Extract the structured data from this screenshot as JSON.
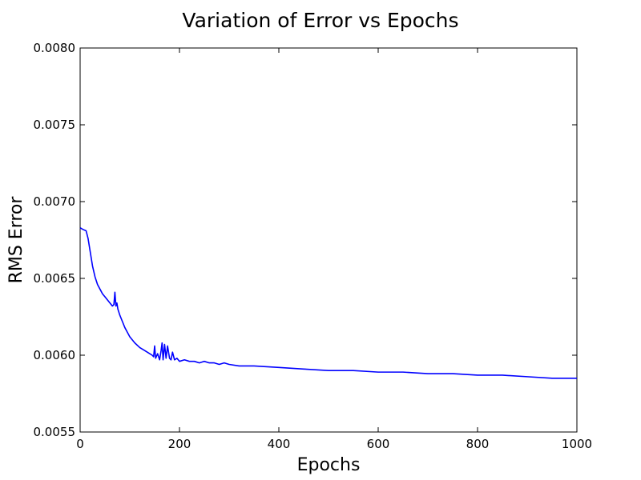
{
  "chart_data": {
    "type": "line",
    "title": "Variation of Error vs Epochs",
    "xlabel": "Epochs",
    "ylabel": "RMS Error",
    "xlim": [
      0,
      1000
    ],
    "ylim": [
      0.0055,
      0.008
    ],
    "x_ticks": [
      "0",
      "200",
      "400",
      "600",
      "800",
      "1000"
    ],
    "y_ticks": [
      "0.0055",
      "0.0060",
      "0.0065",
      "0.0070",
      "0.0075",
      "0.0080"
    ],
    "grid": false,
    "legend": "none",
    "series": [
      {
        "color": "#0000ff",
        "x": [
          0,
          5,
          12,
          16,
          20,
          25,
          30,
          35,
          40,
          45,
          50,
          55,
          60,
          65,
          68,
          70,
          72,
          74,
          76,
          80,
          85,
          90,
          95,
          100,
          110,
          120,
          130,
          140,
          145,
          148,
          150,
          152,
          156,
          160,
          163,
          165,
          167,
          170,
          173,
          176,
          180,
          183,
          186,
          190,
          195,
          200,
          210,
          220,
          230,
          240,
          250,
          260,
          270,
          280,
          290,
          300,
          320,
          350,
          400,
          450,
          500,
          550,
          600,
          650,
          700,
          750,
          800,
          850,
          900,
          950,
          1000
        ],
        "y": [
          0.00683,
          0.00682,
          0.00681,
          0.00676,
          0.00668,
          0.00658,
          0.00651,
          0.00646,
          0.00643,
          0.0064,
          0.00638,
          0.00636,
          0.00634,
          0.00632,
          0.00633,
          0.00641,
          0.00632,
          0.00634,
          0.0063,
          0.00626,
          0.00622,
          0.00618,
          0.00615,
          0.00612,
          0.00608,
          0.00605,
          0.00603,
          0.00601,
          0.006,
          0.00599,
          0.00606,
          0.00598,
          0.00601,
          0.00597,
          0.00603,
          0.00608,
          0.00597,
          0.00607,
          0.00598,
          0.00606,
          0.00598,
          0.00597,
          0.00602,
          0.00597,
          0.00598,
          0.00596,
          0.00597,
          0.00596,
          0.00596,
          0.00595,
          0.00596,
          0.00595,
          0.00595,
          0.00594,
          0.00595,
          0.00594,
          0.00593,
          0.00593,
          0.00592,
          0.00591,
          0.0059,
          0.0059,
          0.00589,
          0.00589,
          0.00588,
          0.00588,
          0.00587,
          0.00587,
          0.00586,
          0.00585,
          0.00585
        ]
      }
    ]
  }
}
